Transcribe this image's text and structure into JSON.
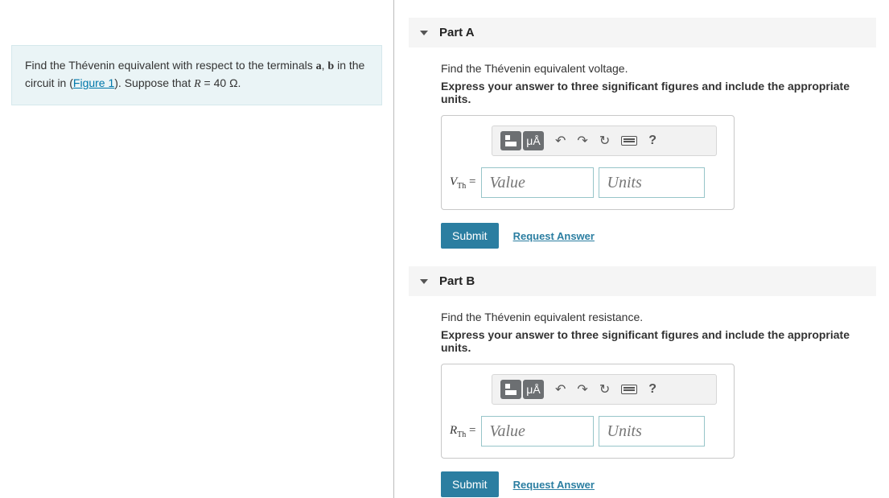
{
  "question": {
    "pre": "Find the Thévenin equivalent with respect to the terminals ",
    "term_a": "a",
    "comma": ", ",
    "term_b": "b",
    "mid": " in the circuit in (",
    "figure_link": "Figure 1",
    "post_fig": "). Suppose that ",
    "R_sym": "R",
    "eq_val": " = 40 Ω."
  },
  "parts": [
    {
      "title": "Part A",
      "instr": "Find the Thévenin equivalent voltage.",
      "bold": "Express your answer to three significant figures and include the appropriate units.",
      "var_html_letter": "V",
      "var_sub": "Th",
      "value_placeholder": "Value",
      "units_placeholder": "Units",
      "submit": "Submit",
      "request": "Request Answer",
      "toolbar": {
        "units_btn": "μÅ",
        "help": "?"
      }
    },
    {
      "title": "Part B",
      "instr": "Find the Thévenin equivalent resistance.",
      "bold": "Express your answer to three significant figures and include the appropriate units.",
      "var_html_letter": "R",
      "var_sub": "Th",
      "value_placeholder": "Value",
      "units_placeholder": "Units",
      "submit": "Submit",
      "request": "Request Answer",
      "toolbar": {
        "units_btn": "μÅ",
        "help": "?"
      }
    }
  ]
}
